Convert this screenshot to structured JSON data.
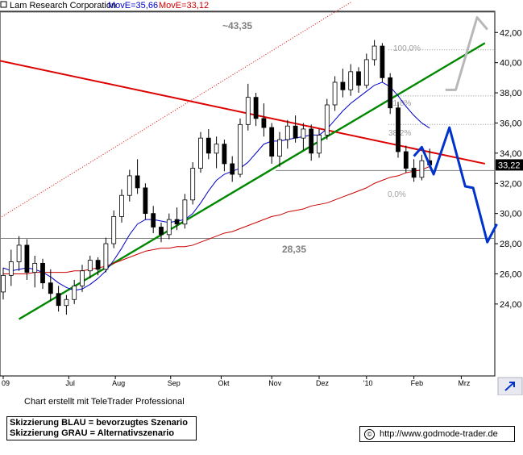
{
  "header": {
    "company": "Lam Research Corporation",
    "ma_fast": "MovE=35,66",
    "ma_slow": "MovE=33,12"
  },
  "colors": {
    "price": "#000000",
    "ma_fast": "#0000cc",
    "ma_slow": "#cc0000",
    "red_trend": "#dd0000",
    "green_trend": "#008800",
    "blue_scenario": "#0033cc",
    "grey_scenario": "#b8b8b8",
    "level_line": "#808080",
    "price_tag_bg": "#000000"
  },
  "footer": {
    "credit": "Chart erstellt mit TeleTrader Professional",
    "legend_blue": "Skizzierung BLAU = bevorzugtes Szenario",
    "legend_grey": "Skizzierung GRAU = Alternativszenario",
    "url": "http://www.godmode-trader.de",
    "copyright_symbol": "©"
  },
  "chart_data": {
    "type": "candlestick",
    "title": "Lam Research Corporation",
    "y_ticks": [
      "24,00",
      "26,00",
      "28,00",
      "30,00",
      "32,00",
      "34,00",
      "36,00",
      "38,00",
      "40,00",
      "42,00"
    ],
    "ylim": [
      23.0,
      43.8
    ],
    "x_ticks": [
      "09",
      "Jul",
      "Aug",
      "Sep",
      "Okt",
      "Nov",
      "Dez",
      "'10",
      "Feb",
      "Mrz"
    ],
    "last_price": "33,22",
    "annotations": {
      "resistance_label": "~43,35",
      "support_label": "28,35",
      "fib_100": "100,0%",
      "fib_61": "61,8%",
      "fib_38": "38,2%",
      "fib_0": "0,0%"
    },
    "levels": {
      "resistance": 43.35,
      "support": 28.35,
      "fib_100": 40.85,
      "fib_0": 32.85
    },
    "series": [
      {
        "name": "Lam Research Corporation",
        "values": [
          {
            "t": 0,
            "o": 24.8,
            "h": 26.4,
            "l": 24.3,
            "c": 25.9
          },
          {
            "t": 1,
            "o": 25.9,
            "h": 27.6,
            "l": 25.2,
            "c": 26.8
          },
          {
            "t": 2,
            "o": 26.8,
            "h": 28.5,
            "l": 26.2,
            "c": 27.9
          },
          {
            "t": 3,
            "o": 27.9,
            "h": 28.3,
            "l": 25.6,
            "c": 26.1
          },
          {
            "t": 4,
            "o": 26.1,
            "h": 27.2,
            "l": 25.1,
            "c": 26.7
          },
          {
            "t": 5,
            "o": 26.7,
            "h": 27.0,
            "l": 25.0,
            "c": 25.4
          },
          {
            "t": 6,
            "o": 25.4,
            "h": 26.3,
            "l": 24.2,
            "c": 24.7
          },
          {
            "t": 7,
            "o": 24.7,
            "h": 25.2,
            "l": 23.5,
            "c": 23.9
          },
          {
            "t": 8,
            "o": 23.9,
            "h": 24.6,
            "l": 23.3,
            "c": 24.3
          },
          {
            "t": 9,
            "o": 24.3,
            "h": 25.6,
            "l": 24.0,
            "c": 25.2
          },
          {
            "t": 10,
            "o": 25.2,
            "h": 26.6,
            "l": 24.8,
            "c": 26.2
          },
          {
            "t": 11,
            "o": 26.2,
            "h": 27.2,
            "l": 25.7,
            "c": 26.9
          },
          {
            "t": 12,
            "o": 26.9,
            "h": 27.1,
            "l": 25.9,
            "c": 26.3
          },
          {
            "t": 13,
            "o": 26.3,
            "h": 28.4,
            "l": 26.1,
            "c": 28.0
          },
          {
            "t": 14,
            "o": 28.0,
            "h": 30.2,
            "l": 27.7,
            "c": 29.8
          },
          {
            "t": 15,
            "o": 29.8,
            "h": 31.6,
            "l": 29.4,
            "c": 31.2
          },
          {
            "t": 16,
            "o": 31.2,
            "h": 32.9,
            "l": 30.8,
            "c": 32.5
          },
          {
            "t": 17,
            "o": 32.5,
            "h": 33.6,
            "l": 31.3,
            "c": 31.7
          },
          {
            "t": 18,
            "o": 31.7,
            "h": 32.0,
            "l": 29.6,
            "c": 30.0
          },
          {
            "t": 19,
            "o": 30.0,
            "h": 30.5,
            "l": 28.7,
            "c": 29.1
          },
          {
            "t": 20,
            "o": 29.1,
            "h": 29.4,
            "l": 28.1,
            "c": 28.6
          },
          {
            "t": 21,
            "o": 28.6,
            "h": 30.0,
            "l": 28.3,
            "c": 29.6
          },
          {
            "t": 22,
            "o": 29.6,
            "h": 30.4,
            "l": 28.9,
            "c": 29.3
          },
          {
            "t": 23,
            "o": 29.3,
            "h": 31.3,
            "l": 29.0,
            "c": 30.9
          },
          {
            "t": 24,
            "o": 30.9,
            "h": 33.4,
            "l": 30.6,
            "c": 33.0
          },
          {
            "t": 25,
            "o": 33.0,
            "h": 35.4,
            "l": 32.7,
            "c": 35.0
          },
          {
            "t": 26,
            "o": 35.0,
            "h": 35.6,
            "l": 33.6,
            "c": 34.0
          },
          {
            "t": 27,
            "o": 34.0,
            "h": 35.1,
            "l": 33.0,
            "c": 34.6
          },
          {
            "t": 28,
            "o": 34.6,
            "h": 34.9,
            "l": 32.8,
            "c": 33.3
          },
          {
            "t": 29,
            "o": 33.3,
            "h": 33.8,
            "l": 32.1,
            "c": 32.6
          },
          {
            "t": 30,
            "o": 32.6,
            "h": 36.3,
            "l": 32.4,
            "c": 35.9
          },
          {
            "t": 31,
            "o": 35.9,
            "h": 38.6,
            "l": 35.5,
            "c": 37.7
          },
          {
            "t": 32,
            "o": 37.7,
            "h": 38.0,
            "l": 35.8,
            "c": 36.3
          },
          {
            "t": 33,
            "o": 36.3,
            "h": 37.3,
            "l": 35.1,
            "c": 35.7
          },
          {
            "t": 34,
            "o": 35.7,
            "h": 36.0,
            "l": 33.3,
            "c": 33.8
          },
          {
            "t": 35,
            "o": 33.8,
            "h": 35.4,
            "l": 33.1,
            "c": 34.9
          },
          {
            "t": 36,
            "o": 34.9,
            "h": 36.2,
            "l": 34.3,
            "c": 35.8
          },
          {
            "t": 37,
            "o": 35.8,
            "h": 36.5,
            "l": 34.7,
            "c": 35.0
          },
          {
            "t": 38,
            "o": 35.0,
            "h": 36.0,
            "l": 34.2,
            "c": 35.6
          },
          {
            "t": 39,
            "o": 35.6,
            "h": 35.9,
            "l": 33.5,
            "c": 34.0
          },
          {
            "t": 40,
            "o": 34.0,
            "h": 35.6,
            "l": 33.7,
            "c": 35.2
          },
          {
            "t": 41,
            "o": 35.2,
            "h": 37.6,
            "l": 34.9,
            "c": 37.2
          },
          {
            "t": 42,
            "o": 37.2,
            "h": 39.1,
            "l": 36.8,
            "c": 38.7
          },
          {
            "t": 43,
            "o": 38.7,
            "h": 39.6,
            "l": 37.7,
            "c": 38.2
          },
          {
            "t": 44,
            "o": 38.2,
            "h": 39.9,
            "l": 37.8,
            "c": 39.4
          },
          {
            "t": 45,
            "o": 39.4,
            "h": 39.7,
            "l": 38.0,
            "c": 38.5
          },
          {
            "t": 46,
            "o": 38.5,
            "h": 40.6,
            "l": 38.3,
            "c": 40.2
          },
          {
            "t": 47,
            "o": 40.2,
            "h": 41.5,
            "l": 39.8,
            "c": 41.1
          },
          {
            "t": 48,
            "o": 41.1,
            "h": 41.3,
            "l": 38.7,
            "c": 39.0
          },
          {
            "t": 49,
            "o": 39.0,
            "h": 39.3,
            "l": 36.6,
            "c": 37.0
          },
          {
            "t": 50,
            "o": 37.0,
            "h": 37.4,
            "l": 33.7,
            "c": 34.1
          },
          {
            "t": 51,
            "o": 34.1,
            "h": 34.5,
            "l": 32.7,
            "c": 33.0
          },
          {
            "t": 52,
            "o": 33.0,
            "h": 33.6,
            "l": 32.1,
            "c": 32.4
          },
          {
            "t": 53,
            "o": 32.4,
            "h": 33.9,
            "l": 32.2,
            "c": 33.5
          },
          {
            "t": 54,
            "o": 33.5,
            "h": 34.3,
            "l": 33.0,
            "c": 33.22
          }
        ]
      },
      {
        "name": "MovE=35,66",
        "values": [
          26.4,
          26.2,
          26.3,
          26.4,
          26.3,
          26.1,
          25.8,
          25.4,
          25.1,
          24.9,
          25.0,
          25.3,
          25.7,
          26.2,
          26.9,
          27.7,
          28.6,
          29.3,
          29.6,
          29.6,
          29.5,
          29.4,
          29.5,
          29.6,
          30.0,
          30.7,
          31.5,
          32.2,
          32.6,
          32.8,
          33.0,
          33.4,
          34.0,
          34.6,
          34.8,
          34.8,
          34.9,
          35.0,
          35.1,
          35.2,
          35.2,
          35.6,
          36.2,
          36.8,
          37.3,
          37.7,
          38.1,
          38.5,
          38.7,
          38.4,
          37.8,
          37.1,
          36.5,
          36.0,
          35.66
        ]
      },
      {
        "name": "MovE=33,12",
        "values": [
          26.0,
          26.0,
          26.0,
          26.0,
          26.1,
          26.1,
          26.1,
          26.1,
          26.1,
          26.2,
          26.2,
          26.3,
          26.4,
          26.5,
          26.7,
          26.9,
          27.1,
          27.3,
          27.5,
          27.6,
          27.7,
          27.7,
          27.8,
          27.8,
          27.9,
          28.1,
          28.3,
          28.5,
          28.7,
          28.8,
          29.0,
          29.2,
          29.4,
          29.6,
          29.8,
          29.9,
          30.1,
          30.2,
          30.3,
          30.5,
          30.6,
          30.7,
          30.9,
          31.1,
          31.3,
          31.5,
          31.7,
          32.0,
          32.2,
          32.4,
          32.5,
          32.7,
          32.8,
          32.9,
          33.12
        ]
      }
    ],
    "trendlines": {
      "red_resistance": [
        [
          -2,
          40.3
        ],
        [
          61,
          33.3
        ]
      ],
      "green_support": [
        [
          2,
          23.0
        ],
        [
          61,
          41.3
        ]
      ],
      "red_dotted_channel": [
        [
          -2,
          29.2
        ],
        [
          44,
          44.0
        ]
      ]
    },
    "scenarios": {
      "blue": [
        [
          52,
          33.8
        ],
        [
          53,
          34.4
        ],
        [
          54.5,
          32.6
        ],
        [
          56.5,
          35.7
        ],
        [
          58.5,
          31.8
        ],
        [
          59.5,
          31.7
        ],
        [
          61.3,
          28.1
        ],
        [
          62.5,
          29.3
        ]
      ],
      "grey": [
        [
          56,
          38.2
        ],
        [
          57.3,
          38.2
        ],
        [
          60,
          43.0
        ],
        [
          61.3,
          42.2
        ]
      ]
    }
  }
}
